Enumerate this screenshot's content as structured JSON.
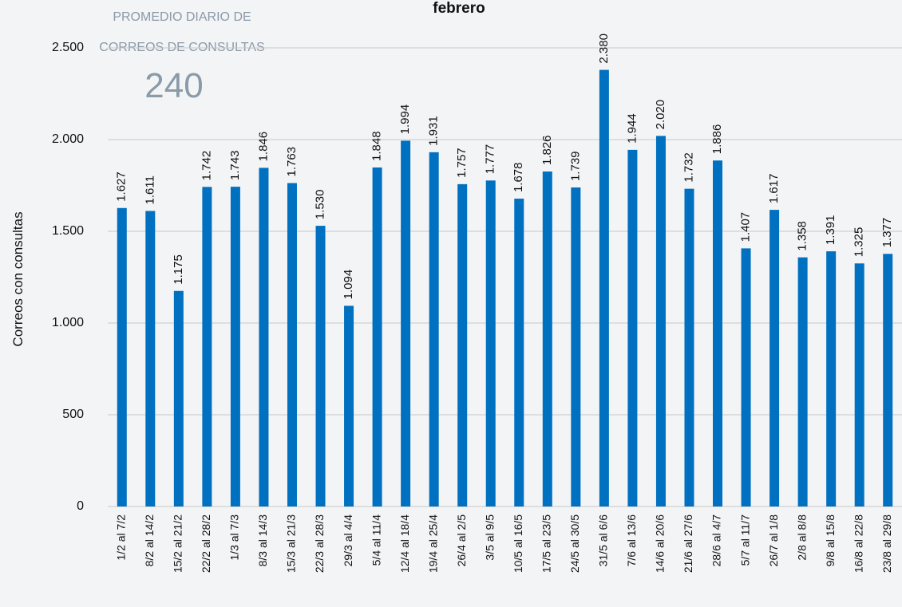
{
  "chart_data": {
    "type": "bar",
    "title": "febrero",
    "y_label": "Correos con consultas",
    "annotation": {
      "lines": [
        "PROMEDIO DIARIO DE",
        "CORREOS DE CONSULTAS"
      ],
      "value": 240
    },
    "categories": [
      "1/2 al 7/2",
      "8/2 al 14/2",
      "15/2 al 21/2",
      "22/2 al 28/2",
      "1/3 al 7/3",
      "8/3 al 14/3",
      "15/3 al 21/3",
      "22/3 al 28/3",
      "29/3 al 4/4",
      "5/4 al 11/4",
      "12/4 al 18/4",
      "19/4 al 25/4",
      "26/4 al 2/5",
      "3/5 al 9/5",
      "10/5 al 16/5",
      "17/5 al 23/5",
      "24/5 al 30/5",
      "31/5 al 6/6",
      "7/6 al 13/6",
      "14/6 al 20/6",
      "21/6 al 27/6",
      "28/6 al 4/7",
      "5/7 al 11/7",
      "26/7 al 1/8",
      "2/8 al 8/8",
      "9/8 al 15/8",
      "16/8 al 22/8",
      "23/8 al 29/8"
    ],
    "values": [
      1627,
      1611,
      1175,
      1742,
      1743,
      1846,
      1763,
      1530,
      1094,
      1848,
      1994,
      1931,
      1757,
      1777,
      1678,
      1826,
      1739,
      2380,
      1944,
      2020,
      1732,
      1886,
      1407,
      1617,
      1358,
      1391,
      1325,
      1377
    ],
    "value_labels": [
      "1.627",
      "1.611",
      "1.175",
      "1.742",
      "1.743",
      "1.846",
      "1.763",
      "1.530",
      "1.094",
      "1.848",
      "1.994",
      "1.931",
      "1.757",
      "1.777",
      "1.678",
      "1.826",
      "1.739",
      "2.380",
      "1.944",
      "2.020",
      "1.732",
      "1.886",
      "1.407",
      "1.617",
      "1.358",
      "1.391",
      "1.325",
      "1.377"
    ],
    "color": "#0070c0",
    "ylim": [
      0,
      2500
    ],
    "yticks": [
      0,
      500,
      {
        "value": 1000,
        "label": "1.000"
      },
      {
        "value": 1500,
        "label": "1.500"
      },
      {
        "value": 2000,
        "label": "2.000"
      },
      {
        "value": 2500,
        "label": "2.500"
      }
    ],
    "grid": true
  }
}
